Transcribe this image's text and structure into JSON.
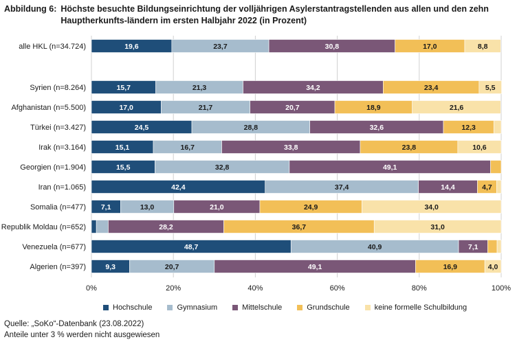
{
  "figure": {
    "label": "Abbildung 6:",
    "title": "Höchste besuchte Bildungseinrichtung der volljährigen Asylerstantragstellenden aus allen und den zehn Hauptherkunfts-ländern im ersten Halbjahr 2022 (in Prozent)"
  },
  "chart_data": {
    "type": "bar",
    "orientation": "horizontal",
    "stacked": true,
    "xlim": [
      0,
      100
    ],
    "xticks": [
      "0%",
      "20%",
      "40%",
      "60%",
      "80%",
      "100%"
    ],
    "grid": true,
    "legend_position": "bottom",
    "categories": [
      "alle HKL (n=34.724)",
      "Syrien (n=8.264)",
      "Afghanistan (n=5.500)",
      "Türkei (n=3.427)",
      "Irak (n=3.164)",
      "Georgien (n=1.904)",
      "Iran (n=1.065)",
      "Somalia (n=477)",
      "Republik Moldau (n=652)",
      "Venezuela (n=677)",
      "Algerien (n=397)"
    ],
    "series": [
      {
        "name": "Hochschule",
        "color": "#1f4e79",
        "values": [
          19.6,
          15.7,
          17.0,
          24.5,
          15.1,
          15.5,
          42.4,
          7.1,
          1.2,
          48.7,
          9.3
        ],
        "labels": [
          "19,6",
          "15,7",
          "17,0",
          "24,5",
          "15,1",
          "15,5",
          "42,4",
          "7,1",
          "",
          "48,7",
          "9,3"
        ]
      },
      {
        "name": "Gymnasium",
        "color": "#a6bccd",
        "values": [
          23.7,
          21.3,
          21.7,
          28.8,
          16.7,
          32.8,
          37.4,
          13.0,
          2.9,
          40.9,
          20.7
        ],
        "labels": [
          "23,7",
          "21,3",
          "21,7",
          "28,8",
          "16,7",
          "32,8",
          "37,4",
          "13,0",
          "",
          "40,9",
          "20,7"
        ]
      },
      {
        "name": "Mittelschule",
        "color": "#7a5777",
        "values": [
          30.8,
          34.2,
          20.7,
          32.6,
          33.8,
          49.1,
          14.4,
          21.0,
          28.2,
          7.1,
          49.1
        ],
        "labels": [
          "30,8",
          "34,2",
          "20,7",
          "32,6",
          "33,8",
          "49,1",
          "14,4",
          "21,0",
          "28,2",
          "7,1",
          "49,1"
        ]
      },
      {
        "name": "Grundschule",
        "color": "#f2bf57",
        "values": [
          17.0,
          23.4,
          18.9,
          12.3,
          23.8,
          2.6,
          4.7,
          24.9,
          36.7,
          2.3,
          16.9
        ],
        "labels": [
          "17,0",
          "23,4",
          "18,9",
          "12,3",
          "23,8",
          "",
          "4,7",
          "24,9",
          "36,7",
          "",
          "16,9"
        ]
      },
      {
        "name": "keine formelle Schulbildung",
        "color": "#f9e2a9",
        "values": [
          8.8,
          5.5,
          21.6,
          1.8,
          10.6,
          0.0,
          1.1,
          34.0,
          31.0,
          1.0,
          4.0
        ],
        "labels": [
          "8,8",
          "5,5",
          "21,6",
          "",
          "10,6",
          "",
          "",
          "34,0",
          "31,0",
          "",
          "4,0"
        ]
      }
    ]
  },
  "source": "Quelle: „SoKo“-Datenbank (23.08.2022)",
  "note": "Anteile unter 3 % werden nicht ausgewiesen"
}
